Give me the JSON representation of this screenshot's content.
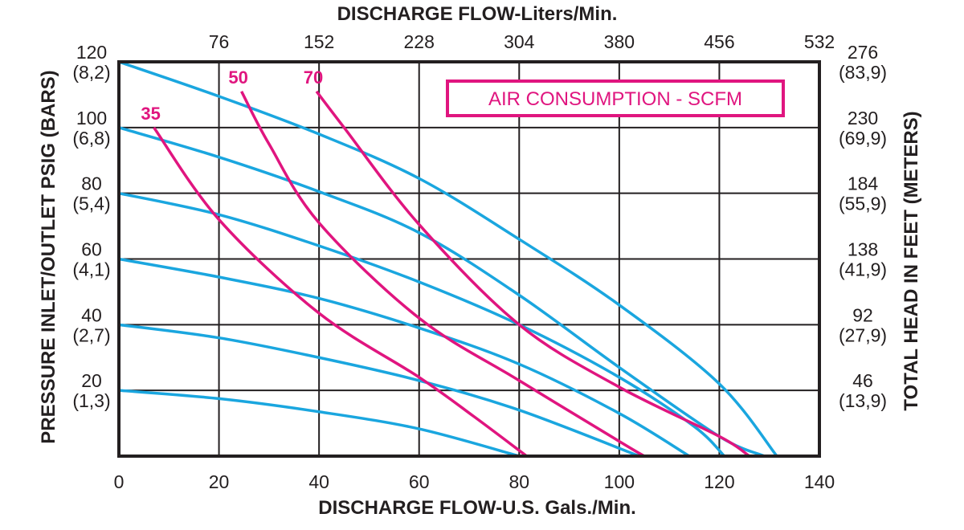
{
  "chart_data": {
    "type": "line",
    "title_top": "DISCHARGE FLOW-Liters/Min.",
    "xlabel": "DISCHARGE FLOW-U.S. Gals./Min.",
    "ylabel_left": "PRESSURE INLET/OUTLET PSIG (BARS)",
    "ylabel_right": "TOTAL HEAD IN FEET (METERS)",
    "xlim": [
      0,
      140
    ],
    "ylim": [
      0,
      120
    ],
    "grid": true,
    "x_ticks": [
      "0",
      "20",
      "40",
      "60",
      "80",
      "100",
      "120",
      "140"
    ],
    "x_tick_values": [
      0,
      20,
      40,
      60,
      80,
      100,
      120,
      140
    ],
    "top_ticks": [
      "76",
      "152",
      "228",
      "304",
      "380",
      "456",
      "532"
    ],
    "top_tick_values": [
      20,
      40,
      60,
      80,
      100,
      120,
      140
    ],
    "left_ticks": [
      {
        "value": 120,
        "label": "120",
        "sub": "(8,2)"
      },
      {
        "value": 100,
        "label": "100",
        "sub": "(6,8)"
      },
      {
        "value": 80,
        "label": "80",
        "sub": "(5,4)"
      },
      {
        "value": 60,
        "label": "60",
        "sub": "(4,1)"
      },
      {
        "value": 40,
        "label": "40",
        "sub": "(2,7)"
      },
      {
        "value": 20,
        "label": "20",
        "sub": "(1,3)"
      }
    ],
    "right_ticks": [
      {
        "value": 120,
        "label": "276",
        "sub": "(83,9)"
      },
      {
        "value": 100,
        "label": "230",
        "sub": "(69,9)"
      },
      {
        "value": 80,
        "label": "184",
        "sub": "(55,9)"
      },
      {
        "value": 60,
        "label": "138",
        "sub": "(41,9)"
      },
      {
        "value": 40,
        "label": "92",
        "sub": "(27,9)"
      },
      {
        "value": 20,
        "label": "46",
        "sub": "(13,9)"
      }
    ],
    "legend_box": "AIR CONSUMPTION - SCFM",
    "colors": {
      "pressure": "#1aa6df",
      "air": "#e0157f",
      "grid": "#231f20"
    },
    "pressure_curves": [
      {
        "psi": 120,
        "points": [
          [
            0,
            120
          ],
          [
            20,
            109.5
          ],
          [
            40,
            98
          ],
          [
            60,
            84.5
          ],
          [
            80,
            66
          ],
          [
            100,
            46
          ],
          [
            120,
            22
          ],
          [
            131.5,
            0
          ]
        ]
      },
      {
        "psi": 100,
        "points": [
          [
            0,
            100
          ],
          [
            20,
            91
          ],
          [
            40,
            80.5
          ],
          [
            60,
            68
          ],
          [
            80,
            49
          ],
          [
            100,
            27
          ],
          [
            120,
            6
          ],
          [
            129,
            0
          ]
        ]
      },
      {
        "psi": 80,
        "points": [
          [
            0,
            80
          ],
          [
            20,
            73.5
          ],
          [
            40,
            64
          ],
          [
            60,
            53
          ],
          [
            80,
            40
          ],
          [
            100,
            24
          ],
          [
            115,
            9
          ],
          [
            121,
            0
          ]
        ]
      },
      {
        "psi": 60,
        "points": [
          [
            0,
            60
          ],
          [
            20,
            54.5
          ],
          [
            40,
            48
          ],
          [
            60,
            39
          ],
          [
            80,
            28
          ],
          [
            100,
            13
          ],
          [
            114,
            0
          ]
        ]
      },
      {
        "psi": 40,
        "points": [
          [
            0,
            40
          ],
          [
            20,
            36
          ],
          [
            40,
            30
          ],
          [
            60,
            23
          ],
          [
            80,
            14
          ],
          [
            104,
            0
          ]
        ]
      },
      {
        "psi": 20,
        "points": [
          [
            0,
            20
          ],
          [
            20,
            17.5
          ],
          [
            40,
            13.5
          ],
          [
            60,
            8.3
          ],
          [
            80,
            0
          ]
        ]
      }
    ],
    "air_curves": [
      {
        "label": "35",
        "points": [
          [
            7,
            100
          ],
          [
            20,
            72
          ],
          [
            40,
            43.5
          ],
          [
            60,
            24
          ],
          [
            71,
            12
          ],
          [
            81.5,
            0
          ]
        ]
      },
      {
        "label": "50",
        "points": [
          [
            24.5,
            111
          ],
          [
            30,
            95
          ],
          [
            40,
            71
          ],
          [
            60,
            42
          ],
          [
            80,
            23
          ],
          [
            100,
            4.5
          ],
          [
            105,
            0
          ]
        ]
      },
      {
        "label": "70",
        "points": [
          [
            39.5,
            111
          ],
          [
            45,
            100
          ],
          [
            60,
            70.5
          ],
          [
            80,
            40
          ],
          [
            100,
            21
          ],
          [
            120,
            6
          ],
          [
            126,
            0
          ]
        ]
      }
    ]
  }
}
